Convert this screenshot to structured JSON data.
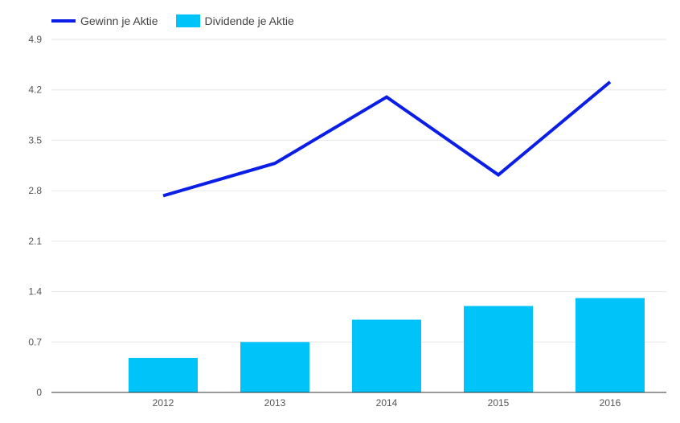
{
  "chart_data": {
    "type": "bar",
    "categories": [
      "2012",
      "2013",
      "2014",
      "2015",
      "2016"
    ],
    "series": [
      {
        "name": "Dividende je Aktie",
        "kind": "bar",
        "values": [
          0.48,
          0.7,
          1.01,
          1.2,
          1.31
        ]
      },
      {
        "name": "Gewinn je Aktie",
        "kind": "line",
        "values": [
          2.73,
          3.18,
          4.1,
          3.02,
          4.31
        ]
      }
    ],
    "yticks": [
      "0",
      "0.7",
      "1.4",
      "2.1",
      "2.8",
      "3.5",
      "4.2",
      "4.9"
    ],
    "ylim": [
      0,
      4.9
    ],
    "grid": true,
    "legend": "top-left",
    "colors": {
      "line": "#0a1ee6",
      "bar": "#00c3fa",
      "grid": "#e6e6e6",
      "axis": "#333333"
    }
  }
}
